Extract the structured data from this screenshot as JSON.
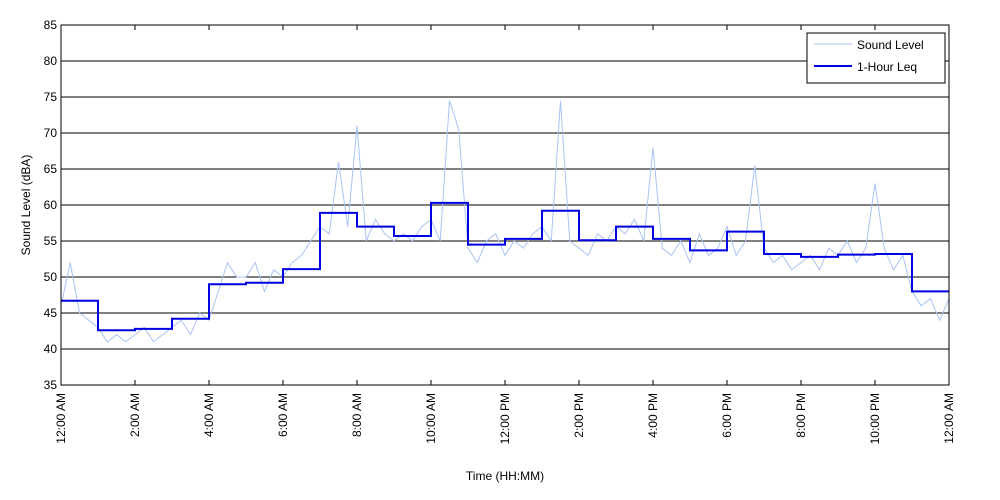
{
  "chart_data": {
    "type": "line",
    "xlabel": "Time (HH:MM)",
    "ylabel": "Sound Level (dBA)",
    "xlim": [
      0,
      24
    ],
    "ylim": [
      35,
      85
    ],
    "yticks": [
      35,
      40,
      45,
      50,
      55,
      60,
      65,
      70,
      75,
      80,
      85
    ],
    "xticks": [
      {
        "value": 0,
        "label": "12:00 AM"
      },
      {
        "value": 2,
        "label": "2:00 AM"
      },
      {
        "value": 4,
        "label": "4:00 AM"
      },
      {
        "value": 6,
        "label": "6:00 AM"
      },
      {
        "value": 8,
        "label": "8:00 AM"
      },
      {
        "value": 10,
        "label": "10:00 AM"
      },
      {
        "value": 12,
        "label": "12:00 PM"
      },
      {
        "value": 14,
        "label": "2:00 PM"
      },
      {
        "value": 16,
        "label": "4:00 PM"
      },
      {
        "value": 18,
        "label": "6:00 PM"
      },
      {
        "value": 20,
        "label": "8:00 PM"
      },
      {
        "value": 22,
        "label": "10:00 PM"
      },
      {
        "value": 24,
        "label": "12:00 AM"
      }
    ],
    "grid": true,
    "legend": "upper right",
    "series": [
      {
        "name": "Sound Level",
        "color": "#a9c3f2",
        "step": false,
        "x": [
          0,
          0.25,
          0.5,
          0.75,
          1,
          1.25,
          1.5,
          1.75,
          2,
          2.25,
          2.5,
          2.75,
          3,
          3.25,
          3.5,
          3.75,
          4,
          4.25,
          4.5,
          4.75,
          5,
          5.25,
          5.5,
          5.75,
          6,
          6.25,
          6.5,
          6.75,
          7,
          7.25,
          7.5,
          7.75,
          8,
          8.25,
          8.5,
          8.75,
          9,
          9.25,
          9.5,
          9.75,
          10,
          10.25,
          10.5,
          10.75,
          11,
          11.25,
          11.5,
          11.75,
          12,
          12.25,
          12.5,
          12.75,
          13,
          13.25,
          13.5,
          13.75,
          14,
          14.25,
          14.5,
          14.75,
          15,
          15.25,
          15.5,
          15.75,
          16,
          16.25,
          16.5,
          16.75,
          17,
          17.25,
          17.5,
          17.75,
          18,
          18.25,
          18.5,
          18.75,
          19,
          19.25,
          19.5,
          19.75,
          20,
          20.25,
          20.5,
          20.75,
          21,
          21.25,
          21.5,
          21.75,
          22,
          22.25,
          22.5,
          22.75,
          23,
          23.25,
          23.5,
          23.75,
          24
        ],
        "values": [
          46,
          52,
          45,
          44,
          43,
          41,
          42,
          41,
          42,
          43,
          41,
          42,
          43,
          44,
          42,
          45,
          44,
          48,
          52,
          50,
          50,
          52,
          48,
          51,
          50,
          52,
          53,
          55,
          57,
          56,
          66,
          57,
          71,
          55,
          58,
          56,
          55,
          56,
          55,
          57,
          58,
          55,
          74.5,
          70.5,
          54,
          52,
          55,
          56,
          53,
          55,
          54,
          56,
          57,
          55,
          74.5,
          55,
          54,
          53,
          56,
          55,
          57,
          56,
          58,
          55,
          68,
          54,
          53,
          55,
          52,
          56,
          53,
          54,
          57,
          53,
          55,
          65.5,
          54,
          52,
          53,
          51,
          52,
          53,
          51,
          54,
          53,
          55,
          52,
          54,
          63,
          54,
          51,
          53,
          48,
          46,
          47,
          44,
          47
        ]
      },
      {
        "name": "1-Hour Leq",
        "color": "#0000e0",
        "step": true,
        "x": [
          0,
          1,
          2,
          3,
          4,
          5,
          6,
          7,
          8,
          9,
          10,
          11,
          12,
          13,
          14,
          15,
          16,
          17,
          18,
          19,
          20,
          21,
          22,
          23
        ],
        "values": [
          46.7,
          42.6,
          42.8,
          44.2,
          49.0,
          49.2,
          51.1,
          58.9,
          57.0,
          55.7,
          60.3,
          54.5,
          55.3,
          59.2,
          55.1,
          57.0,
          55.3,
          53.7,
          56.3,
          53.2,
          52.8,
          53.1,
          53.2,
          48.0
        ]
      }
    ]
  }
}
